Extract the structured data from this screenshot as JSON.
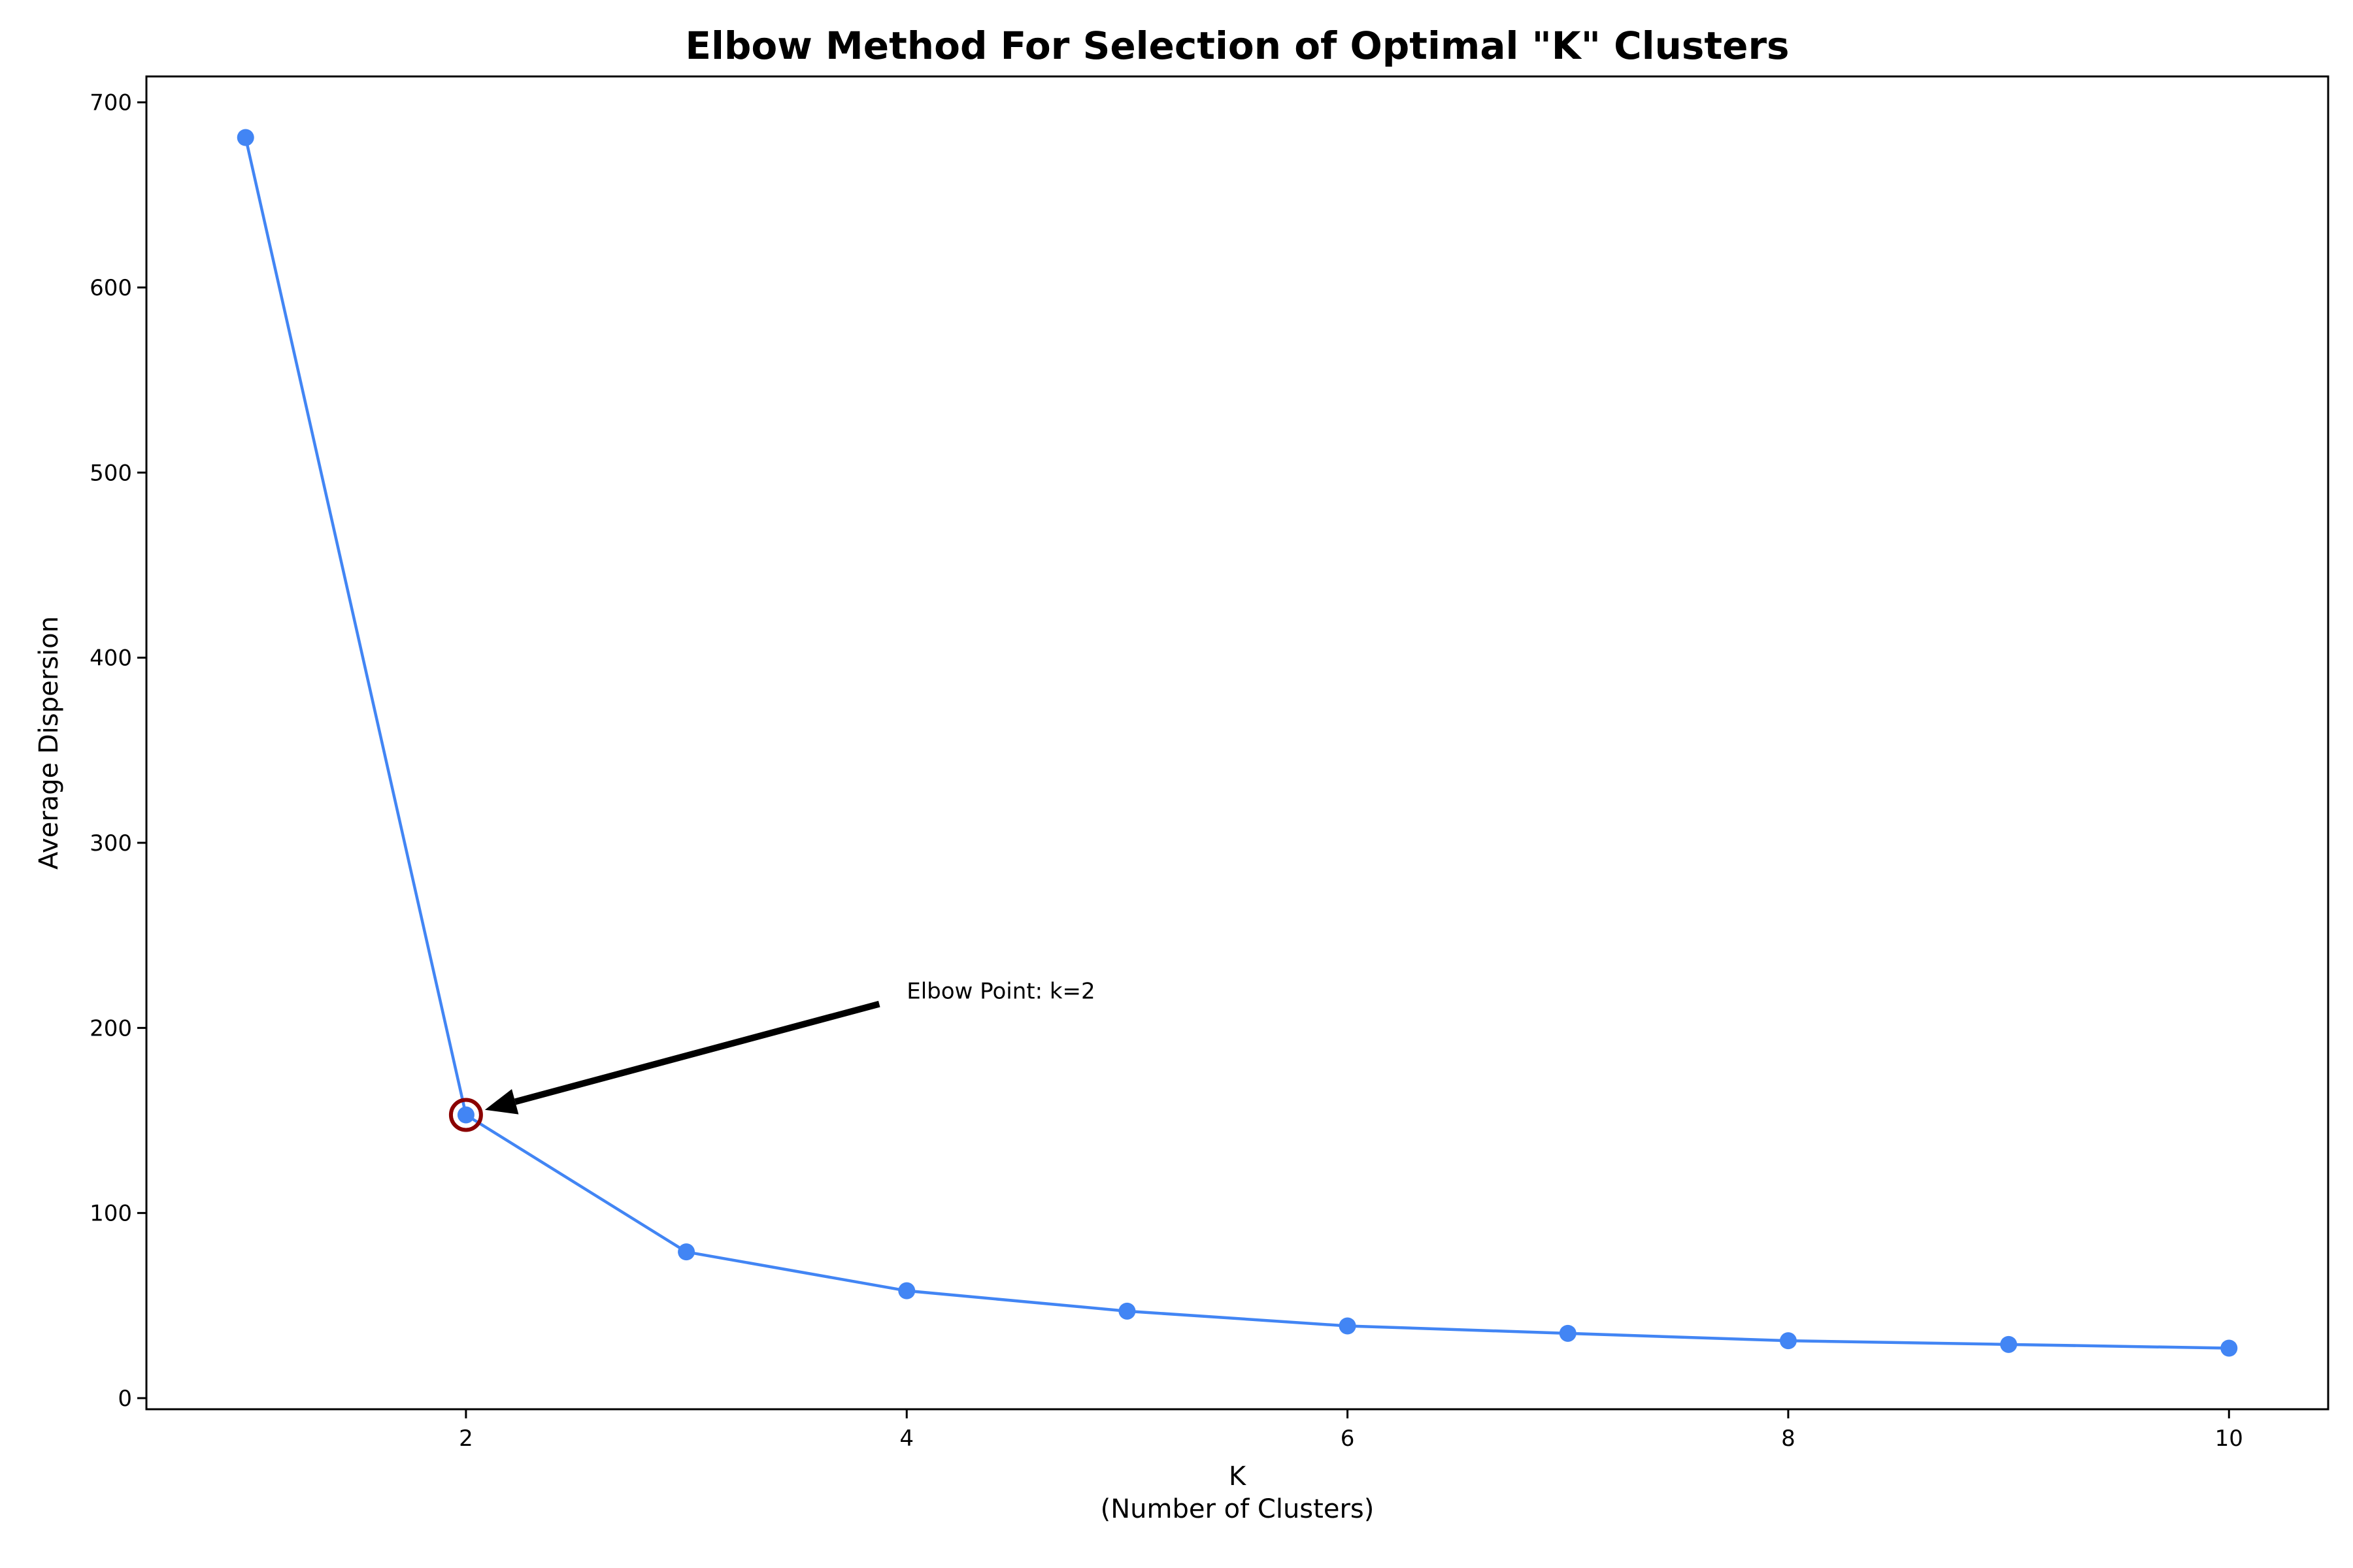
{
  "chart_data": {
    "type": "line",
    "title": "Elbow Method For Selection of Optimal \"K\" Clusters",
    "xlabel": "K",
    "xlabel_sub": "(Number of Clusters)",
    "ylabel": "Average Dispersion",
    "x": [
      1,
      2,
      3,
      4,
      5,
      6,
      7,
      8,
      9,
      10
    ],
    "series": [
      {
        "values": [
          681,
          153,
          79,
          58,
          47,
          39,
          35,
          31,
          29,
          27
        ]
      }
    ],
    "xlim": [
      0.55,
      10.45
    ],
    "ylim": [
      -6,
      714
    ],
    "xticks": [
      2,
      4,
      6,
      8,
      10
    ],
    "yticks": [
      0,
      100,
      200,
      300,
      400,
      500,
      600,
      700
    ],
    "grid": false,
    "colors": {
      "line": "#4285f4",
      "marker": "#4285f4",
      "highlight": "#8b0000"
    },
    "annotation": {
      "text": "Elbow Point: k=2",
      "point": {
        "x": 2,
        "y": 153
      },
      "text_at": {
        "x": 4,
        "y": 220
      }
    }
  }
}
